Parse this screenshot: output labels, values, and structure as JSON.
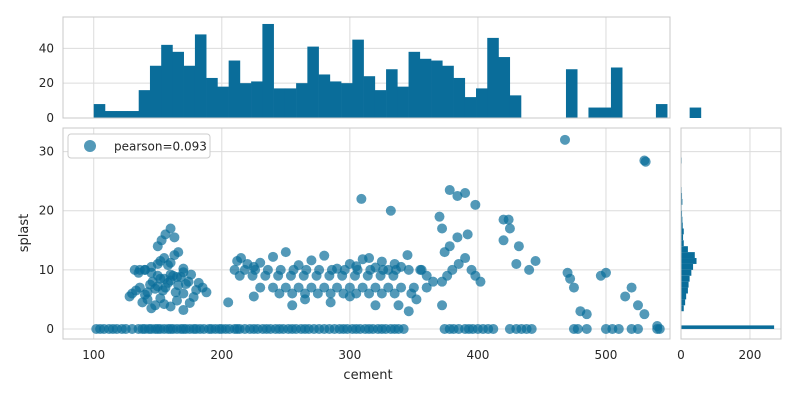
{
  "chart_data": {
    "type": "scatter",
    "title": "",
    "xlabel": "cement",
    "ylabel": "splast",
    "xlim": [
      76,
      550
    ],
    "ylim": [
      -1.7,
      34
    ],
    "xticks": [
      100,
      200,
      300,
      400,
      500
    ],
    "yticks": [
      0,
      10,
      20,
      30
    ],
    "legend": "top-left",
    "grid": true,
    "color": "#0a6d9a",
    "series": [
      {
        "name": "pearson=0.093",
        "x": [
          102,
          105,
          108,
          112,
          115,
          118,
          122,
          125,
          130,
          135,
          138,
          140,
          143,
          145,
          148,
          150,
          152,
          155,
          158,
          160,
          162,
          165,
          168,
          170,
          172,
          175,
          178,
          180,
          183,
          186,
          190,
          192,
          195,
          198,
          200,
          203,
          206,
          210,
          212,
          214,
          218,
          222,
          225,
          228,
          232,
          235,
          238,
          242,
          245,
          248,
          252,
          255,
          258,
          262,
          265,
          268,
          272,
          276,
          280,
          284,
          288,
          292,
          295,
          298,
          302,
          305,
          308,
          312,
          315,
          318,
          322,
          325,
          328,
          332,
          335,
          338,
          342,
          374,
          378,
          381,
          385,
          390,
          393,
          396,
          400,
          404,
          408,
          412,
          425,
          430,
          434,
          438,
          442,
          475,
          478,
          485,
          500,
          505,
          510,
          520,
          525,
          540,
          542,
          128,
          130,
          133,
          136,
          140,
          142,
          144,
          146,
          148,
          150,
          152,
          154,
          156,
          158,
          160,
          162,
          164,
          166,
          168,
          170,
          172,
          174,
          176,
          178,
          180,
          182,
          185,
          188,
          135,
          140,
          145,
          150,
          152,
          155,
          158,
          160,
          163,
          166,
          170,
          150,
          153,
          156,
          160,
          163,
          138,
          142,
          145,
          148,
          152,
          155,
          160,
          165,
          170,
          175,
          132,
          136,
          140,
          145,
          150,
          155,
          160,
          165,
          170,
          212,
          215,
          220,
          225,
          230,
          240,
          250,
          260,
          270,
          280,
          290,
          300,
          305,
          310,
          315,
          320,
          325,
          330,
          335,
          340,
          345,
          210,
          218,
          226,
          236,
          246,
          256,
          266,
          276,
          286,
          296,
          306,
          316,
          326,
          336,
          346,
          356,
          214,
          224,
          234,
          244,
          254,
          264,
          274,
          284,
          294,
          304,
          314,
          324,
          334,
          230,
          240,
          250,
          260,
          270,
          280,
          290,
          300,
          310,
          320,
          330,
          340,
          350,
          245,
          255,
          265,
          275,
          285,
          295,
          305,
          315,
          325,
          335,
          205,
          225,
          255,
          265,
          285,
          300,
          320,
          372,
          376,
          380,
          385,
          390,
          395,
          398,
          402,
          374,
          378,
          384,
          392,
          378,
          384,
          420,
          425,
          430,
          440,
          445,
          470,
          472,
          475,
          480,
          485,
          500,
          515,
          520,
          525,
          530,
          540,
          355,
          360,
          365,
          348,
          352,
          360,
          372,
          338,
          346,
          420,
          432,
          496,
          370,
          372,
          390,
          398,
          424,
          309,
          332,
          468,
          530,
          531
        ],
        "y": [
          0,
          0,
          0,
          0,
          0,
          0,
          0,
          0,
          0,
          0,
          0,
          0,
          0,
          0,
          0,
          0,
          0,
          0,
          0,
          0,
          0,
          0,
          0,
          0,
          0,
          0,
          0,
          0,
          0,
          0,
          0,
          0,
          0,
          0,
          0,
          0,
          0,
          0,
          0,
          0,
          0,
          0,
          0,
          0,
          0,
          0,
          0,
          0,
          0,
          0,
          0,
          0,
          0,
          0,
          0,
          0,
          0,
          0,
          0,
          0,
          0,
          0,
          0,
          0,
          0,
          0,
          0,
          0,
          0,
          0,
          0,
          0,
          0,
          0,
          0,
          0,
          0,
          0,
          0,
          0,
          0,
          0,
          0,
          0,
          0,
          0,
          0,
          0,
          0,
          0,
          0,
          0,
          0,
          0,
          0,
          0,
          0,
          0,
          0,
          0,
          0,
          0,
          0,
          5.5,
          6.0,
          6.5,
          7.0,
          5.8,
          6.2,
          7.5,
          8.0,
          6.8,
          7.2,
          8.5,
          6.5,
          7.0,
          7.8,
          8.2,
          9.0,
          6.2,
          7.4,
          8.8,
          6.0,
          7.6,
          8.0,
          9.2,
          5.4,
          6.6,
          7.8,
          7.0,
          6.2,
          9.5,
          10.0,
          10.5,
          11.0,
          11.5,
          12.0,
          10.8,
          11.2,
          12.5,
          13.0,
          10.2,
          14.0,
          15.0,
          16.0,
          17.0,
          15.5,
          4.5,
          5.0,
          3.5,
          4.0,
          5.2,
          4.2,
          3.8,
          4.8,
          3.2,
          4.4,
          10,
          10,
          10,
          9.5,
          9.0,
          8.5,
          9.2,
          8.8,
          9.6,
          11.5,
          12.0,
          11.0,
          10.5,
          11.2,
          12.2,
          13.0,
          10.8,
          11.6,
          12.4,
          10.2,
          11.0,
          10.6,
          11.8,
          12.0,
          10.4,
          11.4,
          10.0,
          11.0,
          10.5,
          12.5,
          10,
          10,
          10,
          10,
          10,
          10,
          10,
          10,
          10,
          10,
          10,
          10,
          10,
          10,
          10,
          10,
          9,
          9,
          9,
          9,
          9,
          9,
          9,
          9,
          9,
          9,
          9,
          9,
          9,
          7,
          7,
          7,
          7,
          7,
          7,
          7,
          7,
          7,
          7,
          7,
          7,
          7,
          6,
          6,
          6,
          6,
          6,
          6,
          6,
          6,
          6,
          6,
          4.5,
          5.5,
          4.0,
          5.0,
          4.5,
          5.5,
          4.0,
          8,
          9,
          10,
          11,
          12,
          10,
          9,
          8,
          13,
          14,
          15.5,
          16,
          23.5,
          22.5,
          18.5,
          17,
          11,
          10,
          11.5,
          9.5,
          8.5,
          7,
          3,
          2.5,
          9.5,
          5.5,
          7,
          4,
          2.5,
          0.5,
          10,
          9,
          8,
          6,
          5,
          7,
          4,
          4,
          3,
          15,
          14,
          9,
          19,
          17,
          23,
          21,
          18.5,
          22,
          20,
          32,
          28.5,
          28.3
        ]
      }
    ],
    "top_histogram": {
      "bin_start": 100,
      "bin_width": 8.78,
      "ylim": [
        0,
        58
      ],
      "yticks": [
        0,
        20,
        40
      ],
      "counts": [
        8,
        4,
        4,
        4,
        16,
        30,
        42,
        38,
        30,
        48,
        23,
        18,
        33,
        20,
        21,
        54,
        17,
        17,
        20,
        41,
        25,
        21,
        20,
        45,
        24,
        16,
        28,
        18,
        38,
        34,
        33,
        30,
        23,
        12,
        17,
        46,
        35,
        13,
        0,
        0,
        0,
        0,
        28,
        0,
        6,
        6,
        29,
        0,
        0,
        0,
        8,
        0,
        0,
        6
      ]
    },
    "right_histogram": {
      "xlim": [
        0,
        290
      ],
      "xticks": [
        0,
        200
      ],
      "bins": [
        {
          "y0": 0,
          "y1": 0.6,
          "count": 270
        },
        {
          "y0": 3,
          "y1": 4,
          "count": 8
        },
        {
          "y0": 4,
          "y1": 5,
          "count": 12
        },
        {
          "y0": 5,
          "y1": 6,
          "count": 15
        },
        {
          "y0": 6,
          "y1": 7,
          "count": 20
        },
        {
          "y0": 7,
          "y1": 8,
          "count": 22
        },
        {
          "y0": 8,
          "y1": 9,
          "count": 25
        },
        {
          "y0": 9,
          "y1": 10,
          "count": 30
        },
        {
          "y0": 10,
          "y1": 11,
          "count": 35
        },
        {
          "y0": 11,
          "y1": 12,
          "count": 45
        },
        {
          "y0": 12,
          "y1": 13,
          "count": 40
        },
        {
          "y0": 13,
          "y1": 14,
          "count": 20
        },
        {
          "y0": 14,
          "y1": 15,
          "count": 8
        },
        {
          "y0": 15,
          "y1": 16,
          "count": 6
        },
        {
          "y0": 16,
          "y1": 17,
          "count": 8
        },
        {
          "y0": 17,
          "y1": 18,
          "count": 5
        },
        {
          "y0": 18,
          "y1": 19,
          "count": 4
        },
        {
          "y0": 19,
          "y1": 20,
          "count": 3
        },
        {
          "y0": 20,
          "y1": 21,
          "count": 2
        },
        {
          "y0": 21,
          "y1": 22,
          "count": 4
        },
        {
          "y0": 22,
          "y1": 23,
          "count": 3
        },
        {
          "y0": 23,
          "y1": 24,
          "count": 2
        },
        {
          "y0": 28,
          "y1": 29,
          "count": 2
        },
        {
          "y0": 32,
          "y1": 33,
          "count": 1
        }
      ]
    }
  }
}
